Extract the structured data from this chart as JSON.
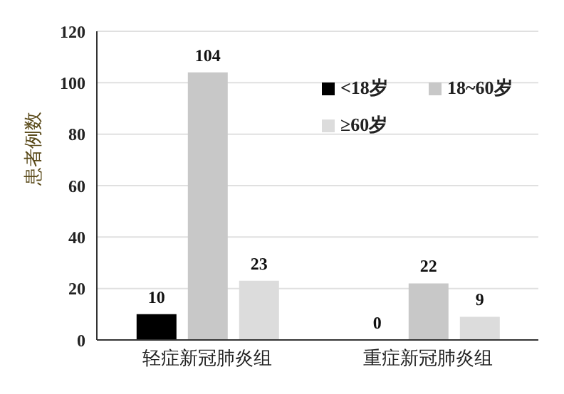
{
  "chart_data": {
    "type": "bar",
    "ylabel": "患者例数",
    "categories": [
      "轻症新冠肺炎组",
      "重症新冠肺炎组"
    ],
    "series": [
      {
        "name": "<18岁",
        "color": "#000000",
        "values": [
          10,
          0
        ]
      },
      {
        "name": "18~60岁",
        "color": "#c8c8c8",
        "values": [
          104,
          22
        ]
      },
      {
        "name": "≥60岁",
        "color": "#dcdcdc",
        "values": [
          23,
          9
        ]
      }
    ],
    "ylim": [
      0,
      120
    ],
    "yticks": [
      0,
      20,
      40,
      60,
      80,
      100,
      120
    ],
    "grid": "y",
    "legend": "top right",
    "data_labels": true
  }
}
